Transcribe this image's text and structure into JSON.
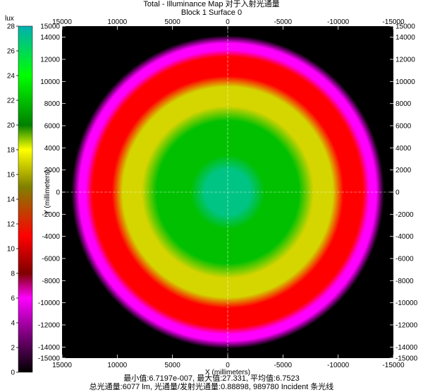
{
  "chart_data": {
    "type": "heatmap",
    "title": "Total - Illuminance Map 对于入射光通量",
    "subtitle": "Block 1 Surface 0",
    "xlabel": "X (millimeters)",
    "ylabel": "Y (millimeters)",
    "colorbar_label": "lux",
    "colorbar_range": [
      0,
      28
    ],
    "colorbar_ticks": [
      "0",
      "2",
      "4",
      "6",
      "8",
      "10",
      "12",
      "14",
      "16",
      "18",
      "20",
      "22",
      "24",
      "26",
      "28"
    ],
    "xlim": [
      15000,
      -15000
    ],
    "ylim": [
      -15000,
      15000
    ],
    "x_ticks": [
      "15000",
      "10000",
      "5000",
      "0",
      "-5000",
      "-10000",
      "-15000"
    ],
    "y_ticks": [
      "15000",
      "14000",
      "12000",
      "10000",
      "8000",
      "6000",
      "4000",
      "2000",
      "0",
      "-2000",
      "-4000",
      "-6000",
      "-8000",
      "-10000",
      "-12000",
      "-14000",
      "-15000"
    ],
    "colormap": [
      {
        "value": 0,
        "color": "#000000"
      },
      {
        "value": 3,
        "color": "#7a007a"
      },
      {
        "value": 6,
        "color": "#ff00ff"
      },
      {
        "value": 8,
        "color": "#800000"
      },
      {
        "value": 11,
        "color": "#ff0000"
      },
      {
        "value": 15,
        "color": "#808000"
      },
      {
        "value": 18,
        "color": "#ffff00"
      },
      {
        "value": 20,
        "color": "#008000"
      },
      {
        "value": 24,
        "color": "#00ff00"
      },
      {
        "value": 28,
        "color": "#00b0b0"
      }
    ],
    "rings": [
      {
        "name": "center",
        "inner_radius": 0,
        "outer_radius": 2500,
        "value": 27
      },
      {
        "name": "green",
        "inner_radius": 2500,
        "outer_radius": 7300,
        "value": 22
      },
      {
        "name": "yellow",
        "inner_radius": 7300,
        "outer_radius": 10000,
        "value": 17
      },
      {
        "name": "red",
        "inner_radius": 10000,
        "outer_radius": 12700,
        "value": 11
      },
      {
        "name": "magenta edge",
        "inner_radius": 12700,
        "outer_radius": 13600,
        "value": 6
      }
    ],
    "grid": true
  },
  "stats_line": "最小值:6.7197e-007, 最大值:27.331, 平均值:6.7523",
  "flux_line": "总光通量:6077 lm, 光通量/发射光通量:0.88898, 989780 Incident 条光线"
}
